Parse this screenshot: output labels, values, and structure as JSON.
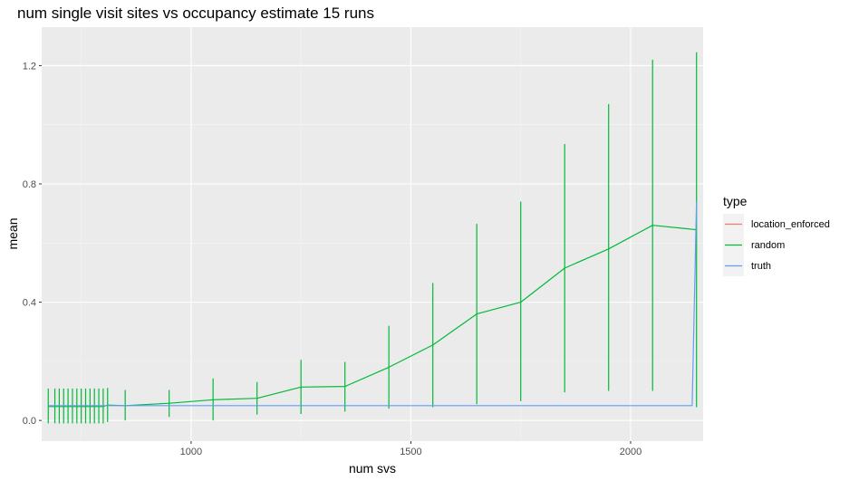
{
  "chart_data": {
    "type": "line",
    "title": "num single visit sites vs occupancy estimate 15 runs",
    "xlabel": "num svs",
    "ylabel": "mean",
    "xlim": [
      660,
      2165
    ],
    "ylim": [
      -0.07,
      1.33
    ],
    "xticks": [
      1000,
      1500,
      2000
    ],
    "xtick_labels": [
      "1000",
      "1500",
      "2000"
    ],
    "yticks": [
      0.0,
      0.4,
      0.8,
      1.2
    ],
    "ytick_labels": [
      "0.0",
      "0.4",
      "0.8",
      "1.2"
    ],
    "grid": true,
    "legend": {
      "title": "type",
      "placement": "right",
      "entries": [
        {
          "label": "location_enforced",
          "color": "#F8766D"
        },
        {
          "label": "random",
          "color": "#00BA38"
        },
        {
          "label": "truth",
          "color": "#619CFF"
        }
      ]
    },
    "series": [
      {
        "name": "random",
        "color": "#00BA38",
        "x": [
          675,
          690,
          700,
          710,
          720,
          730,
          740,
          750,
          760,
          770,
          780,
          790,
          800,
          810,
          850,
          950,
          1050,
          1150,
          1250,
          1350,
          1450,
          1550,
          1650,
          1750,
          1850,
          1950,
          2050,
          2150
        ],
        "y": [
          0.047,
          0.047,
          0.047,
          0.047,
          0.047,
          0.047,
          0.047,
          0.047,
          0.047,
          0.047,
          0.047,
          0.047,
          0.047,
          0.052,
          0.05,
          0.058,
          0.07,
          0.075,
          0.113,
          0.115,
          0.18,
          0.255,
          0.36,
          0.4,
          0.515,
          0.58,
          0.66,
          0.645
        ],
        "ymin": [
          -0.01,
          -0.01,
          -0.01,
          -0.01,
          -0.01,
          -0.01,
          -0.01,
          -0.01,
          -0.01,
          -0.01,
          -0.01,
          -0.01,
          -0.01,
          -0.005,
          0.0,
          0.012,
          0.0,
          0.02,
          0.022,
          0.03,
          0.04,
          0.045,
          0.055,
          0.065,
          0.095,
          0.1,
          0.1,
          0.045
        ],
        "ymax": [
          0.108,
          0.108,
          0.108,
          0.108,
          0.108,
          0.108,
          0.108,
          0.108,
          0.108,
          0.108,
          0.108,
          0.108,
          0.108,
          0.11,
          0.103,
          0.103,
          0.142,
          0.13,
          0.205,
          0.198,
          0.32,
          0.465,
          0.665,
          0.74,
          0.935,
          1.07,
          1.22,
          1.245
        ]
      },
      {
        "name": "truth",
        "color": "#619CFF",
        "x": [
          675,
          850,
          950,
          1050,
          1150,
          1250,
          1350,
          1450,
          1550,
          1650,
          1750,
          1850,
          1950,
          2050,
          2140,
          2150
        ],
        "y": [
          0.05,
          0.05,
          0.05,
          0.05,
          0.05,
          0.05,
          0.05,
          0.05,
          0.05,
          0.05,
          0.05,
          0.05,
          0.05,
          0.05,
          0.05,
          0.74
        ]
      }
    ]
  }
}
